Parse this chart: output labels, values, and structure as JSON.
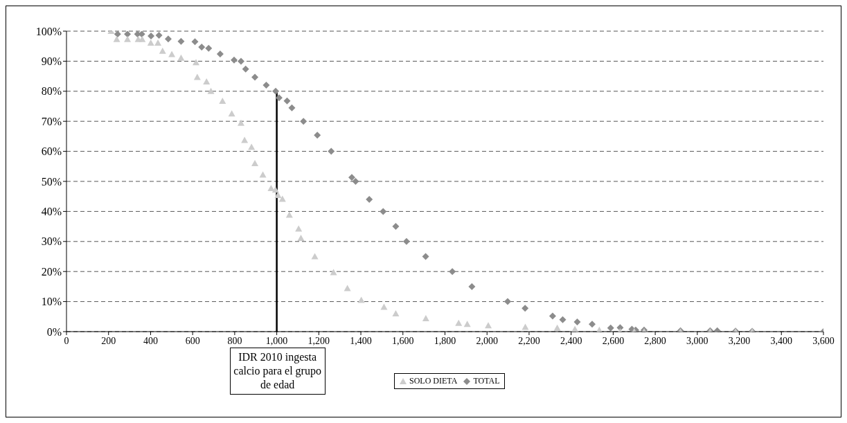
{
  "chart_data": {
    "type": "scatter",
    "series": [
      {
        "name": "SOLO DIETA",
        "color": "#cccccc",
        "marker": "triangle",
        "x": [
          212,
          239,
          290,
          341,
          360,
          401,
          435,
          457,
          501,
          545,
          616,
          622,
          666,
          687,
          742,
          786,
          830,
          847,
          880,
          896,
          934,
          973,
          994,
          1006,
          1027,
          1060,
          1104,
          1115,
          1181,
          1270,
          1336,
          1402,
          1510,
          1566,
          1709,
          1865,
          1906,
          2006,
          2182,
          2334,
          2418,
          2534,
          2633,
          2700,
          2747,
          2920,
          3061,
          3182,
          3261
        ],
        "values": [
          100,
          97.3,
          97.3,
          97.3,
          97.3,
          96.1,
          96.1,
          93.4,
          92.3,
          91.1,
          89.6,
          84.7,
          83.2,
          80,
          76.7,
          72.5,
          69.4,
          63.7,
          61.4,
          56,
          52.2,
          47.7,
          47.2,
          45.4,
          44.1,
          38.8,
          34.2,
          31.1,
          25,
          19.7,
          14.4,
          10.5,
          8.2,
          6,
          4.4,
          2.8,
          2.5,
          2,
          1.5,
          1.2,
          0.8,
          0.5,
          0,
          0,
          0,
          0,
          0,
          0,
          0
        ]
      },
      {
        "name": "TOTAL",
        "color": "#8c8c8c",
        "marker": "diamond",
        "x": [
          243,
          290,
          338,
          358,
          402,
          440,
          484,
          545,
          611,
          643,
          676,
          731,
          797,
          830,
          852,
          896,
          950,
          995,
          1011,
          1049,
          1072,
          1127,
          1193,
          1259,
          1357,
          1375,
          1440,
          1506,
          1566,
          1617,
          1708,
          1835,
          1928,
          2098,
          2181,
          2312,
          2360,
          2429,
          2500,
          2588,
          2633,
          2689,
          2707,
          2747,
          2920,
          3061,
          3095,
          3182,
          3261,
          3600
        ],
        "values": [
          99,
          99,
          99,
          99,
          98.4,
          98.6,
          97.4,
          96.6,
          96.5,
          94.7,
          94.3,
          92.4,
          90.4,
          90,
          87.4,
          84.7,
          82,
          80,
          77.8,
          76.8,
          74.5,
          70,
          65.4,
          60,
          51.3,
          50,
          44,
          40,
          35,
          30,
          25,
          20,
          15,
          10,
          7.8,
          5.2,
          4,
          3.2,
          2.5,
          1.2,
          1.3,
          0.8,
          0.5,
          0.5,
          0.3,
          0.3,
          0.3,
          0.2,
          0.1,
          0
        ]
      }
    ],
    "xlim": [
      0,
      3600
    ],
    "xticks": [
      0,
      200,
      400,
      600,
      800,
      {
        "value": 1000,
        "label": "1,000"
      },
      {
        "value": 1200,
        "label": "1,200"
      },
      {
        "value": 1400,
        "label": "1,400"
      },
      {
        "value": 1600,
        "label": "1,600"
      },
      {
        "value": 1800,
        "label": "1,800"
      },
      {
        "value": 2000,
        "label": "2,000"
      },
      {
        "value": 2200,
        "label": "2,200"
      },
      {
        "value": 2400,
        "label": "2,400"
      },
      {
        "value": 2600,
        "label": "2,600"
      },
      {
        "value": 2800,
        "label": "2,800"
      },
      {
        "value": 3000,
        "label": "3,000"
      },
      {
        "value": 3200,
        "label": "3,200"
      },
      {
        "value": 3400,
        "label": "3,400"
      },
      {
        "value": 3600,
        "label": "3,600"
      }
    ],
    "ylim": [
      0,
      100
    ],
    "yticks": [
      {
        "value": 0,
        "label": "0%"
      },
      {
        "value": 10,
        "label": "10%"
      },
      {
        "value": 20,
        "label": "20%"
      },
      {
        "value": 30,
        "label": "30%"
      },
      {
        "value": 40,
        "label": "40%"
      },
      {
        "value": 50,
        "label": "50%"
      },
      {
        "value": 60,
        "label": "60%"
      },
      {
        "value": 70,
        "label": "70%"
      },
      {
        "value": 80,
        "label": "80%"
      },
      {
        "value": 90,
        "label": "90%"
      },
      {
        "value": 100,
        "label": "100%"
      }
    ],
    "grid": "y",
    "legend": "bottom",
    "ref_lines": [
      {
        "axis": "x",
        "value": 1000,
        "color": "#000000",
        "line_style": "solid"
      }
    ],
    "annotations": [
      "IDR 2010 ingesta calcio para el grupo de edad"
    ]
  }
}
